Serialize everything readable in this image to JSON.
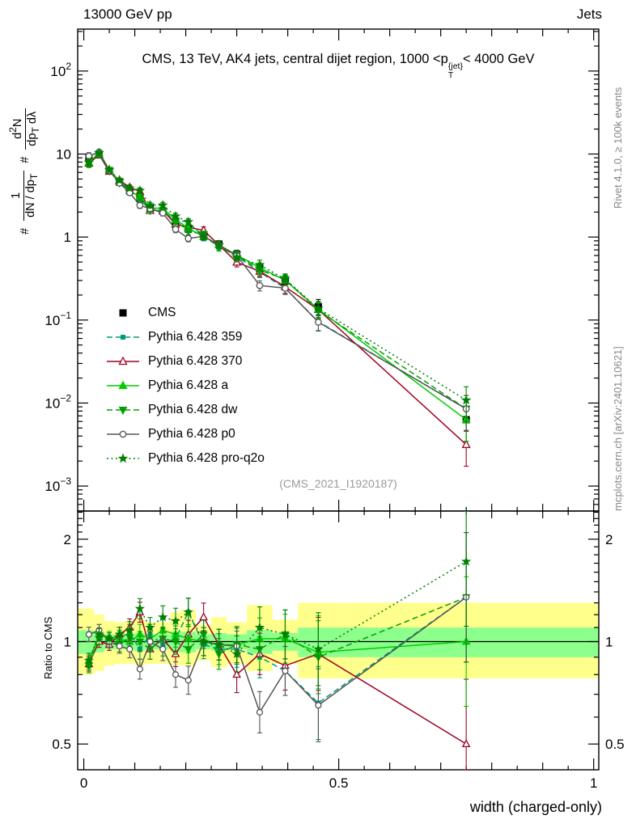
{
  "header": {
    "left": "13000 GeV pp",
    "right": "Jets"
  },
  "title_parts": {
    "pre": "CMS, 13 TeV, AK4 jets, central dijet region, 1000 <",
    "p": "p",
    "sup": "{jet}",
    "sub": "T",
    "post": "< 4000 GeV"
  },
  "watermark": "(CMS_2021_I1920187)",
  "side_notes": {
    "rivet": "Rivet 4.1.0, ≥ 100k events",
    "mcplots": "mcplots.cern.ch [arXiv:2401.10621]"
  },
  "axis_labels": {
    "x": "width (charged-only)",
    "ratio_y": "Ratio to CMS"
  },
  "ylabel_parts": {
    "h1": "#",
    "n1": "1",
    "d1a": "dN / dp",
    "d1s": "T",
    "h2": "#",
    "n2a": "d",
    "n2s": "2",
    "n2b": "N",
    "d2a": "dp",
    "d2s": "T",
    "d2b": " dλ"
  },
  "chart_data": {
    "type": "line",
    "title": "CMS, 13 TeV, AK4 jets, central dijet region, 1000 < pT{jet} < 4000 GeV",
    "xlabel": "width (charged-only)",
    "ylabel": "# 1/(dN/dpT) d2N/(dpT dlambda)",
    "ratio_ylabel": "Ratio to CMS",
    "xlim": [
      -0.012,
      1.01
    ],
    "ylim_main": [
      0.0005,
      320
    ],
    "ylim_ratio": [
      0.42,
      2.42
    ],
    "x_ticks": [
      0,
      0.5,
      1
    ],
    "x_tick_labels": [
      "0",
      "0.5",
      "1"
    ],
    "y_tick_exponents_main": [
      2,
      1,
      0,
      -1,
      -2,
      -3
    ],
    "y_ticks_ratio": [
      0.5,
      1,
      2
    ],
    "y_tick_labels_ratio": [
      "0.5",
      "1",
      "2"
    ],
    "bin_edges": [
      0,
      0.02,
      0.04,
      0.06,
      0.08,
      0.1,
      0.12,
      0.14,
      0.17,
      0.19,
      0.22,
      0.25,
      0.28,
      0.32,
      0.37,
      0.42,
      0.5,
      1.0
    ],
    "x": [
      0.01,
      0.03,
      0.05,
      0.07,
      0.09,
      0.11,
      0.13,
      0.155,
      0.18,
      0.205,
      0.235,
      0.265,
      0.3,
      0.345,
      0.395,
      0.46,
      0.75
    ],
    "cms_values": [
      9.0,
      9.8,
      6.3,
      4.6,
      3.6,
      2.9,
      2.2,
      2.05,
      1.55,
      1.25,
      1.02,
      0.82,
      0.62,
      0.42,
      0.295,
      0.145,
      0.0063
    ],
    "err_frac": [
      0.1,
      0.06,
      0.06,
      0.06,
      0.07,
      0.08,
      0.08,
      0.08,
      0.09,
      0.09,
      0.1,
      0.1,
      0.12,
      0.14,
      0.16,
      0.22,
      0.45
    ],
    "ratio_err": [
      0.05,
      0.04,
      0.04,
      0.05,
      0.06,
      0.07,
      0.07,
      0.08,
      0.09,
      0.1,
      0.1,
      0.11,
      0.13,
      0.15,
      0.18,
      0.28,
      0.55
    ],
    "series": [
      {
        "key": "cms",
        "label": "CMS",
        "color": "#000000",
        "marker": "square",
        "line": "none",
        "is_ref": true
      },
      {
        "key": "p359",
        "label": "Pythia 6.428 359",
        "color": "#00997a",
        "marker": "square-small",
        "line": "dashed",
        "ratio": [
          0.87,
          1.04,
          1.0,
          1.03,
          1.06,
          0.95,
          1.05,
          0.98,
          1.02,
          1.22,
          0.98,
          0.95,
          0.95,
          0.9,
          0.82,
          0.66,
          1.35
        ]
      },
      {
        "key": "p370",
        "label": "Pythia 6.428 370",
        "color": "#a00022",
        "marker": "triangle-open",
        "line": "solid",
        "ratio": [
          0.86,
          1.0,
          0.98,
          1.05,
          1.1,
          1.22,
          0.95,
          1.02,
          0.92,
          1.05,
          1.18,
          0.98,
          0.8,
          0.92,
          0.85,
          0.92,
          0.5
        ]
      },
      {
        "key": "a",
        "label": "Pythia 6.428 a",
        "color": "#00cc00",
        "marker": "triangle-filled",
        "line": "solid",
        "ratio": [
          0.88,
          1.05,
          1.03,
          1.02,
          1.0,
          1.05,
          1.02,
          1.08,
          1.05,
          1.02,
          1.0,
          0.98,
          0.98,
          1.02,
          1.02,
          0.93,
          1.0
        ]
      },
      {
        "key": "dw",
        "label": "Pythia 6.428 dw",
        "color": "#00a000",
        "marker": "triangle-down-filled",
        "line": "dashed",
        "ratio": [
          0.85,
          1.02,
          1.0,
          0.98,
          1.03,
          1.0,
          0.95,
          1.02,
          1.0,
          0.95,
          1.05,
          0.92,
          0.98,
          0.95,
          1.05,
          0.9,
          1.35
        ]
      },
      {
        "key": "p0",
        "label": "Pythia 6.428 p0",
        "color": "#555555",
        "marker": "circle-open",
        "line": "solid",
        "ratio": [
          1.05,
          1.08,
          1.0,
          0.97,
          0.95,
          0.83,
          1.0,
          0.95,
          0.8,
          0.77,
          1.0,
          0.98,
          0.97,
          0.62,
          0.82,
          0.65,
          1.35
        ]
      },
      {
        "key": "proq2o",
        "label": "Pythia 6.428 pro-q2o",
        "color": "#008000",
        "marker": "star",
        "line": "dotted",
        "ratio": [
          0.88,
          1.05,
          1.02,
          1.05,
          1.08,
          1.25,
          1.1,
          1.18,
          1.15,
          1.22,
          1.0,
          0.98,
          0.92,
          1.1,
          1.05,
          0.95,
          1.72
        ]
      }
    ],
    "bands": {
      "yellow_color": "#ffff8c",
      "green_color": "#8cff8c",
      "yellow_lo": [
        0.8,
        0.82,
        0.85,
        0.86,
        0.86,
        0.85,
        0.86,
        0.86,
        0.85,
        0.85,
        0.88,
        0.84,
        0.86,
        0.82,
        0.86,
        0.78,
        0.78
      ],
      "yellow_hi": [
        1.25,
        1.2,
        1.15,
        1.14,
        1.15,
        1.17,
        1.14,
        1.14,
        1.22,
        1.24,
        1.12,
        1.18,
        1.14,
        1.28,
        1.16,
        1.3,
        1.3
      ],
      "green_lo": [
        0.92,
        0.93,
        0.95,
        0.95,
        0.95,
        0.94,
        0.95,
        0.95,
        0.93,
        0.93,
        0.95,
        0.94,
        0.95,
        0.92,
        0.94,
        0.9,
        0.9
      ],
      "green_hi": [
        1.08,
        1.07,
        1.05,
        1.05,
        1.05,
        1.06,
        1.05,
        1.05,
        1.07,
        1.07,
        1.05,
        1.06,
        1.05,
        1.08,
        1.06,
        1.1,
        1.1
      ]
    },
    "legend_position": "left-middle",
    "grid": false
  }
}
